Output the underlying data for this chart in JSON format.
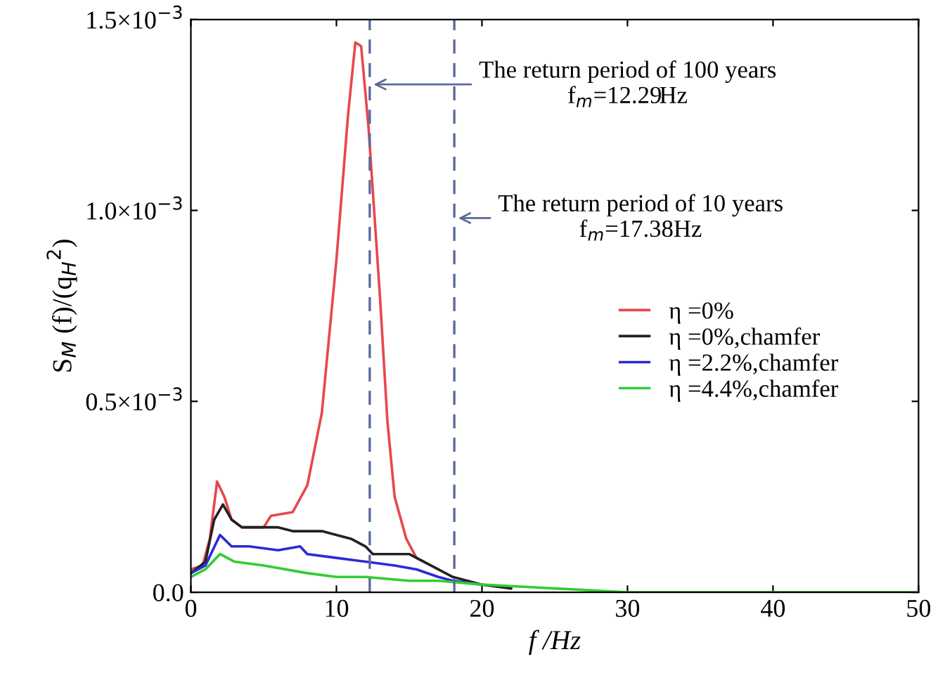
{
  "chart_data": {
    "type": "line",
    "xlabel": "f /Hz",
    "ylabel": "S$_{M}$ (f)/(q$_{H}$$^{2}$)",
    "xlim": [
      0,
      50
    ],
    "xticks": [
      0,
      10,
      20,
      30,
      40,
      50
    ],
    "ylim": [
      0,
      0.0015
    ],
    "yticks": [
      {
        "value": 0,
        "label": "0.0"
      },
      {
        "value": 0.0005,
        "label": "0.5×10$^{−3}$"
      },
      {
        "value": 0.001,
        "label": "1.0×10$^{−3}$"
      },
      {
        "value": 0.0015,
        "label": "1.5×10$^{−3}$"
      }
    ],
    "grid": false,
    "legend": "right",
    "marker": "none",
    "line_style": "solid",
    "series": [
      {
        "name": "η =0%",
        "color": "#e8474c",
        "x": [
          0,
          0.8,
          1.3,
          1.8,
          2.3,
          2.8,
          3.5,
          5,
          5.5,
          7,
          8,
          9,
          10,
          10.8,
          11.3,
          11.7,
          12.2,
          13,
          13.5,
          14,
          14.8,
          15.5,
          17
        ],
        "values": [
          6e-05,
          7e-05,
          0.00014,
          0.00029,
          0.00025,
          0.00019,
          0.00017,
          0.00017,
          0.0002,
          0.00021,
          0.00028,
          0.00047,
          0.00087,
          0.00125,
          0.00144,
          0.00143,
          0.00122,
          0.00077,
          0.00045,
          0.00025,
          0.00014,
          9e-05,
          6e-05
        ]
      },
      {
        "name": "η =0%,chamfer",
        "color": "#222222",
        "x": [
          0,
          1,
          1.6,
          2.2,
          2.8,
          3.5,
          5,
          6,
          7,
          8,
          9,
          10,
          11,
          12,
          12.5,
          13.5,
          15,
          15.5,
          16.5,
          18,
          20,
          22
        ],
        "values": [
          5e-05,
          8e-05,
          0.00019,
          0.00023,
          0.00019,
          0.00017,
          0.00017,
          0.00017,
          0.00016,
          0.00016,
          0.00016,
          0.00015,
          0.00014,
          0.00012,
          0.0001,
          0.0001,
          0.0001,
          9e-05,
          7e-05,
          4e-05,
          2e-05,
          1e-05
        ]
      },
      {
        "name": "η =2.2%,chamfer",
        "color": "#2a2ad8",
        "x": [
          0,
          1,
          2,
          2.8,
          4,
          6,
          7.5,
          8,
          10,
          12,
          14,
          15.5,
          17,
          18,
          20
        ],
        "values": [
          5e-05,
          7e-05,
          0.00015,
          0.00012,
          0.00012,
          0.00011,
          0.00012,
          0.0001,
          9e-05,
          8e-05,
          7e-05,
          6e-05,
          4e-05,
          3e-05,
          2e-05
        ]
      },
      {
        "name": "η =4.4%,chamfer",
        "color": "#33cc33",
        "x": [
          0,
          1,
          2,
          3,
          5,
          8,
          10,
          12,
          15,
          17,
          20,
          25,
          30,
          50
        ],
        "values": [
          4e-05,
          6e-05,
          0.0001,
          8e-05,
          7e-05,
          5e-05,
          4e-05,
          4e-05,
          3e-05,
          3e-05,
          2e-05,
          1e-05,
          0,
          0
        ]
      }
    ],
    "ref_lines": [
      {
        "axis": "x",
        "value": 12.29,
        "color": "#5a6a9a",
        "line_style": "dashed"
      },
      {
        "axis": "x",
        "value": 18.1,
        "color": "#5a6a9a",
        "line_style": "dashed"
      }
    ],
    "annotations": [
      {
        "text": "The return period of 100 years\nf$_{m}$=12.29Hz",
        "x": 12.29,
        "y": 0.00133
      },
      {
        "text": "The return period of 10 years\nf$_{m}$=17.38Hz",
        "x": 18.1,
        "y": 0.00098
      }
    ]
  }
}
